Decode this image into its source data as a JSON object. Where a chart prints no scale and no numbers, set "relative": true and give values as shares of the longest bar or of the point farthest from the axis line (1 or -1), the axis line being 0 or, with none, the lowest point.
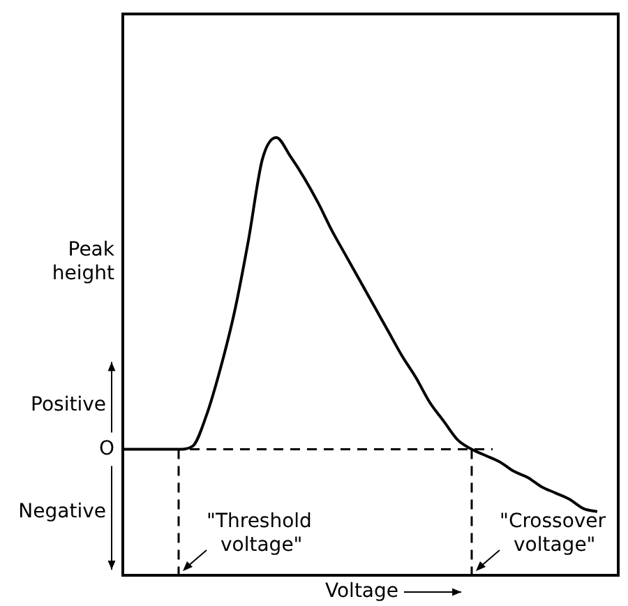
{
  "chart_data": {
    "type": "line",
    "ylabel": "Peak height",
    "xlabel": "Voltage",
    "relative": true,
    "color": "#000000",
    "categories": [
      null,
      null,
      null,
      null,
      null,
      null,
      null,
      null,
      null,
      null,
      null,
      null,
      null,
      null,
      null,
      null,
      null,
      null,
      null,
      null,
      null,
      null,
      null,
      null,
      null,
      null,
      null,
      null,
      null,
      null,
      null,
      null,
      null,
      null,
      null
    ],
    "values": [
      0,
      0,
      0,
      0,
      0,
      0.01,
      0.11,
      0.26,
      0.44,
      0.67,
      0.93,
      1.0,
      0.94,
      0.87,
      0.79,
      0.7,
      0.62,
      0.54,
      0.46,
      0.38,
      0.3,
      0.23,
      0.15,
      0.09,
      0.03,
      0.0,
      -0.02,
      -0.04,
      -0.07,
      -0.09,
      -0.12,
      -0.14,
      -0.16,
      -0.19,
      -0.2
    ],
    "annotations": [
      "Positive",
      "Negative",
      "\"Threshold voltage\"",
      "\"Crossover voltage\""
    ],
    "ref_lines": [
      {
        "axis": "y",
        "value": 0,
        "label": "O",
        "line_style": "dashed"
      }
    ]
  }
}
